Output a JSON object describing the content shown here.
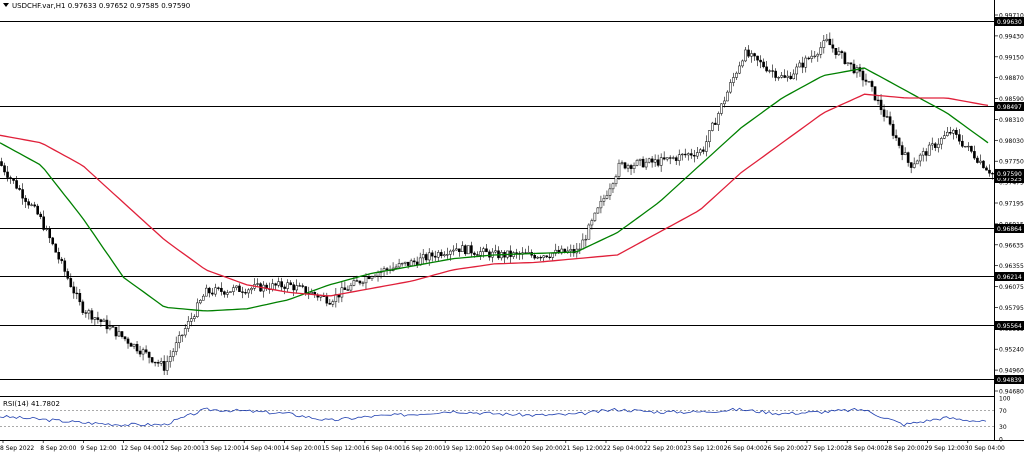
{
  "header": {
    "arrow_icon": "triangle-down-icon",
    "text": "USDCHF.var,H1  0.97633 0.97652 0.97585 0.97590"
  },
  "rsi": {
    "label": "RSI(14) 41.7802",
    "value": 41.7802,
    "levels": [
      30,
      70
    ],
    "scale_labels": [
      "100",
      "70",
      "30",
      "0"
    ]
  },
  "price_scale": {
    "min": 0.9468,
    "max": 0.9971,
    "labels": [
      "0.99710",
      "0.99430",
      "0.99150",
      "0.98870",
      "0.98590",
      "0.98310",
      "0.98030",
      "0.97750",
      "0.97475",
      "0.97195",
      "0.96915",
      "0.96635",
      "0.96355",
      "0.96075",
      "0.95795",
      "0.95515",
      "0.95240",
      "0.94960",
      "0.94680"
    ]
  },
  "levels": [
    {
      "value": 0.9963,
      "label": "0.99630"
    },
    {
      "value": 0.98497,
      "label": "0.98497"
    },
    {
      "value": 0.97525,
      "label": "0.97525"
    },
    {
      "value": 0.96864,
      "label": "0.96864"
    },
    {
      "value": 0.96214,
      "label": "0.96214"
    },
    {
      "value": 0.95564,
      "label": "0.95564"
    },
    {
      "value": 0.94839,
      "label": "0.94839"
    }
  ],
  "current_price": {
    "value": 0.9759,
    "label": "0.97590"
  },
  "time_labels": [
    "8 Sep 2022",
    "8 Sep 20:00",
    "9 Sep 12:00",
    "12 Sep 04:00",
    "12 Sep 20:00",
    "13 Sep 12:00",
    "14 Sep 04:00",
    "14 Sep 20:00",
    "15 Sep 12:00",
    "16 Sep 04:00",
    "16 Sep 20:00",
    "19 Sep 12:00",
    "20 Sep 04:00",
    "20 Sep 20:00",
    "21 Sep 12:00",
    "22 Sep 04:00",
    "22 Sep 20:00",
    "23 Sep 12:00",
    "26 Sep 04:00",
    "26 Sep 20:00",
    "27 Sep 12:00",
    "28 Sep 04:00",
    "28 Sep 20:00",
    "29 Sep 12:00",
    "30 Sep 04:00"
  ],
  "chart_data": {
    "type": "line",
    "title": "USDCHF.var,H1",
    "ylim": [
      0.9468,
      0.9971
    ],
    "x": [
      "8 Sep 2022",
      "8 Sep 20:00",
      "9 Sep 12:00",
      "12 Sep 04:00",
      "12 Sep 20:00",
      "13 Sep 12:00",
      "14 Sep 04:00",
      "14 Sep 20:00",
      "15 Sep 12:00",
      "16 Sep 04:00",
      "16 Sep 20:00",
      "19 Sep 12:00",
      "20 Sep 04:00",
      "20 Sep 20:00",
      "21 Sep 12:00",
      "22 Sep 04:00",
      "22 Sep 20:00",
      "23 Sep 12:00",
      "26 Sep 04:00",
      "26 Sep 20:00",
      "27 Sep 12:00",
      "28 Sep 04:00",
      "28 Sep 20:00",
      "29 Sep 12:00",
      "30 Sep 04:00"
    ],
    "series": [
      {
        "values": [
          0.9775,
          0.97,
          0.958,
          0.954,
          0.95,
          0.96,
          0.9605,
          0.961,
          0.959,
          0.9625,
          0.964,
          0.966,
          0.965,
          0.965,
          0.9655,
          0.977,
          0.9775,
          0.979,
          0.992,
          0.9885,
          0.9935,
          0.988,
          0.977,
          0.9815,
          0.9759
        ],
        "color": "#000000"
      },
      {
        "values": [
          0.98,
          0.977,
          0.97,
          0.962,
          0.958,
          0.9575,
          0.9578,
          0.959,
          0.961,
          0.9625,
          0.9635,
          0.9645,
          0.965,
          0.9652,
          0.9654,
          0.968,
          0.972,
          0.977,
          0.982,
          0.986,
          0.989,
          0.99,
          0.987,
          0.984,
          0.98
        ],
        "color": "#008000"
      },
      {
        "values": [
          0.981,
          0.98,
          0.977,
          0.972,
          0.967,
          0.963,
          0.961,
          0.96,
          0.9595,
          0.9605,
          0.9615,
          0.963,
          0.9638,
          0.964,
          0.9645,
          0.965,
          0.968,
          0.971,
          0.976,
          0.98,
          0.984,
          0.9865,
          0.986,
          0.986,
          0.985
        ],
        "color": "#e0203a"
      }
    ],
    "rsi_values": [
      55,
      48,
      40,
      35,
      35,
      72,
      68,
      62,
      45,
      55,
      60,
      68,
      62,
      58,
      60,
      72,
      66,
      66,
      72,
      62,
      66,
      72,
      35,
      52,
      41.78
    ]
  }
}
